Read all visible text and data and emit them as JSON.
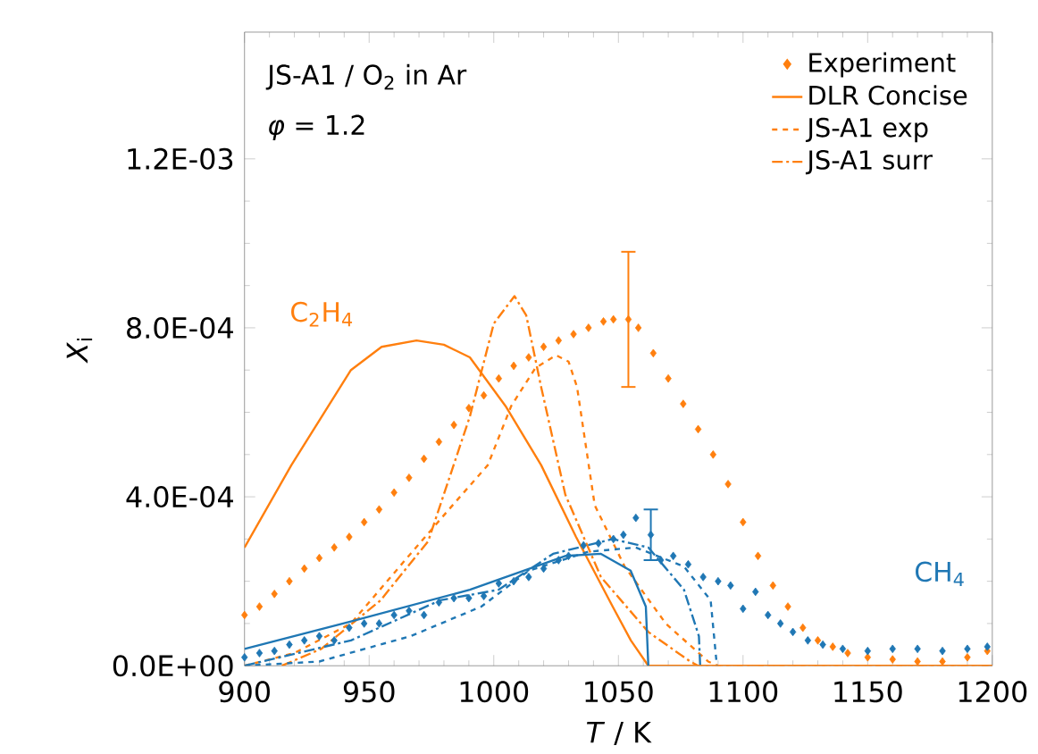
{
  "chart_data": {
    "type": "line",
    "xlabel": "*T* / K",
    "ylabel": "*X*$_{i}$",
    "xlim": [
      900,
      1200
    ],
    "ylim": [
      0,
      0.0015
    ],
    "xticks": [
      900,
      950,
      1000,
      1050,
      1100,
      1150,
      1200
    ],
    "yticks": [
      {
        "value": 0,
        "label": "0.0E+00"
      },
      {
        "value": 0.0004,
        "label": "4.0E-04"
      },
      {
        "value": 0.0008,
        "label": "8.0E-04"
      },
      {
        "value": 0.0012,
        "label": "1.2E-03"
      }
    ],
    "grid": false,
    "legend": "top right",
    "annotations": [
      "JS-A1 / O$_{2}$ in Ar",
      "*φ* = 1.2",
      "C$_{2}$H$_{4}$",
      "CH$_{4}$"
    ],
    "series": [
      {
        "name": "Experiment",
        "type": "scatter",
        "marker": "diamond",
        "color": "#ff7f0e",
        "x": [
          900,
          906,
          912,
          918,
          924,
          930,
          936,
          942,
          948,
          954,
          960,
          966,
          972,
          978,
          984,
          990,
          996,
          1002,
          1008,
          1014,
          1020,
          1026,
          1032,
          1038,
          1044,
          1048,
          1054,
          1058,
          1064,
          1070,
          1076,
          1082,
          1088,
          1094,
          1100,
          1106,
          1112,
          1118,
          1124,
          1130,
          1136,
          1142,
          1150,
          1160,
          1170,
          1180,
          1190,
          1198
        ],
        "values": [
          0.00012,
          0.00014,
          0.00017,
          0.0002,
          0.00023,
          0.000255,
          0.00028,
          0.000305,
          0.00034,
          0.00037,
          0.00041,
          0.000445,
          0.00049,
          0.00053,
          0.00057,
          0.00061,
          0.00064,
          0.00068,
          0.00071,
          0.00073,
          0.000755,
          0.00077,
          0.000785,
          0.0008,
          0.000815,
          0.00082,
          0.00082,
          0.0008,
          0.00074,
          0.00068,
          0.00062,
          0.00056,
          0.0005,
          0.00043,
          0.00034,
          0.00026,
          0.00019,
          0.00014,
          9e-05,
          6e-05,
          4.5e-05,
          3e-05,
          2e-05,
          1.5e-05,
          1e-05,
          1e-05,
          2e-05,
          3.5e-05
        ],
        "errors": [
          null,
          null,
          null,
          null,
          null,
          null,
          null,
          null,
          null,
          null,
          null,
          null,
          null,
          null,
          null,
          null,
          null,
          null,
          null,
          null,
          null,
          null,
          null,
          null,
          null,
          null,
          0.00016,
          null,
          null,
          null,
          null,
          null,
          null,
          null,
          null,
          null,
          null,
          null,
          null,
          null,
          null,
          null,
          null,
          null,
          null,
          null,
          null,
          null
        ]
      },
      {
        "name": "DLR Concise",
        "line_style": "solid",
        "color": "#ff7f0e",
        "x": [
          900,
          918.8,
          942.7,
          955,
          969,
          980,
          990.4,
          1004.7,
          1019,
          1033,
          1047.7,
          1055,
          1062,
          1200
        ],
        "values": [
          0.00028,
          0.000475,
          0.0007,
          0.000755,
          0.00077,
          0.00076,
          0.00073,
          0.000615,
          0.000475,
          0.000305,
          0.00014,
          6e-05,
          0,
          0
        ]
      },
      {
        "name": "JS-A1 exp",
        "line_style": "dashed",
        "color": "#ff7f0e",
        "x": [
          900,
          920,
          942.7,
          966.6,
          982,
          997.6,
          1007,
          1016.7,
          1025,
          1030,
          1033.4,
          1040.5,
          1052.5,
          1069,
          1086,
          1090,
          1200
        ],
        "values": [
          0,
          3e-05,
          0.0001,
          0.000265,
          0.00037,
          0.000475,
          0.000615,
          0.000705,
          0.000735,
          0.00072,
          0.00066,
          0.00038,
          0.000235,
          0.0001,
          1e-05,
          0,
          0
        ]
      },
      {
        "name": "JS-A1 surr",
        "line_style": "dashdot",
        "color": "#ff7f0e",
        "x": [
          915,
          930.8,
          954.6,
          973.7,
          990.4,
          1000,
          1008.3,
          1013,
          1019,
          1028.7,
          1043,
          1062,
          1078.8,
          1082,
          1200
        ],
        "values": [
          0,
          4e-05,
          0.000155,
          0.000295,
          0.00059,
          0.00081,
          0.000875,
          0.00083,
          0.00066,
          0.000405,
          0.00021,
          8e-05,
          1e-05,
          0,
          0
        ]
      },
      {
        "type": "scatter",
        "marker": "diamond",
        "color": "#1f77b4",
        "x": [
          900,
          906,
          912,
          918,
          924,
          930,
          936,
          942,
          948,
          954,
          960,
          966,
          972,
          978,
          984,
          990,
          996,
          1002,
          1008,
          1014,
          1020,
          1026,
          1030,
          1036,
          1042,
          1048,
          1052,
          1057,
          1063,
          1067,
          1072,
          1078,
          1084,
          1090,
          1095,
          1100,
          1105,
          1110,
          1115,
          1120,
          1126,
          1132,
          1140,
          1150,
          1160,
          1170,
          1180,
          1190,
          1198
        ],
        "values": [
          2e-05,
          3e-05,
          3.5e-05,
          5e-05,
          6e-05,
          7e-05,
          6e-05,
          9e-05,
          0.0001,
          0.0001,
          0.00012,
          0.00013,
          0.00012,
          0.00015,
          0.00016,
          0.00016,
          0.000165,
          0.000195,
          0.0002,
          0.00021,
          0.00023,
          0.00025,
          0.00026,
          0.000285,
          0.00029,
          0.0003,
          0.00031,
          0.00035,
          0.00031,
          0.00025,
          0.00026,
          0.00024,
          0.00021,
          0.0002,
          0.00019,
          0.000135,
          0.000175,
          0.00012,
          0.0001,
          8e-05,
          6e-05,
          5e-05,
          4e-05,
          3.5e-05,
          4e-05,
          4e-05,
          3.5e-05,
          4e-05,
          4.5e-05
        ],
        "errors": [
          null,
          null,
          null,
          null,
          null,
          null,
          null,
          null,
          null,
          null,
          null,
          null,
          null,
          null,
          null,
          null,
          null,
          null,
          null,
          null,
          null,
          null,
          null,
          null,
          null,
          null,
          null,
          null,
          6e-05,
          null,
          null,
          null,
          null,
          null,
          null,
          null,
          null,
          null,
          null,
          null,
          null,
          null,
          null,
          null,
          null,
          null,
          null,
          null,
          null
        ]
      },
      {
        "line_style": "solid",
        "color": "#1f77b4",
        "x": [
          900,
          942.7,
          990.4,
          1028.7,
          1043,
          1054.9,
          1061,
          1062
        ],
        "values": [
          4e-05,
          0.000105,
          0.00018,
          0.00026,
          0.000265,
          0.000225,
          0.00014,
          0
        ]
      },
      {
        "line_style": "dashed",
        "color": "#1f77b4",
        "x": [
          900,
          930,
          966.6,
          995,
          1014,
          1038,
          1057,
          1076.3,
          1087,
          1089.5
        ],
        "values": [
          0,
          1e-05,
          7e-05,
          0.00014,
          0.000225,
          0.00027,
          0.00028,
          0.000235,
          0.000155,
          0
        ]
      },
      {
        "line_style": "dashdot",
        "color": "#1f77b4",
        "x": [
          900,
          942.7,
          978.5,
          1002,
          1023.8,
          1047.7,
          1062,
          1076.3,
          1082.3,
          1082.8
        ],
        "values": [
          0,
          6e-05,
          0.000155,
          0.00018,
          0.000265,
          0.0003,
          0.00028,
          0.00018,
          7e-05,
          0
        ]
      }
    ]
  }
}
